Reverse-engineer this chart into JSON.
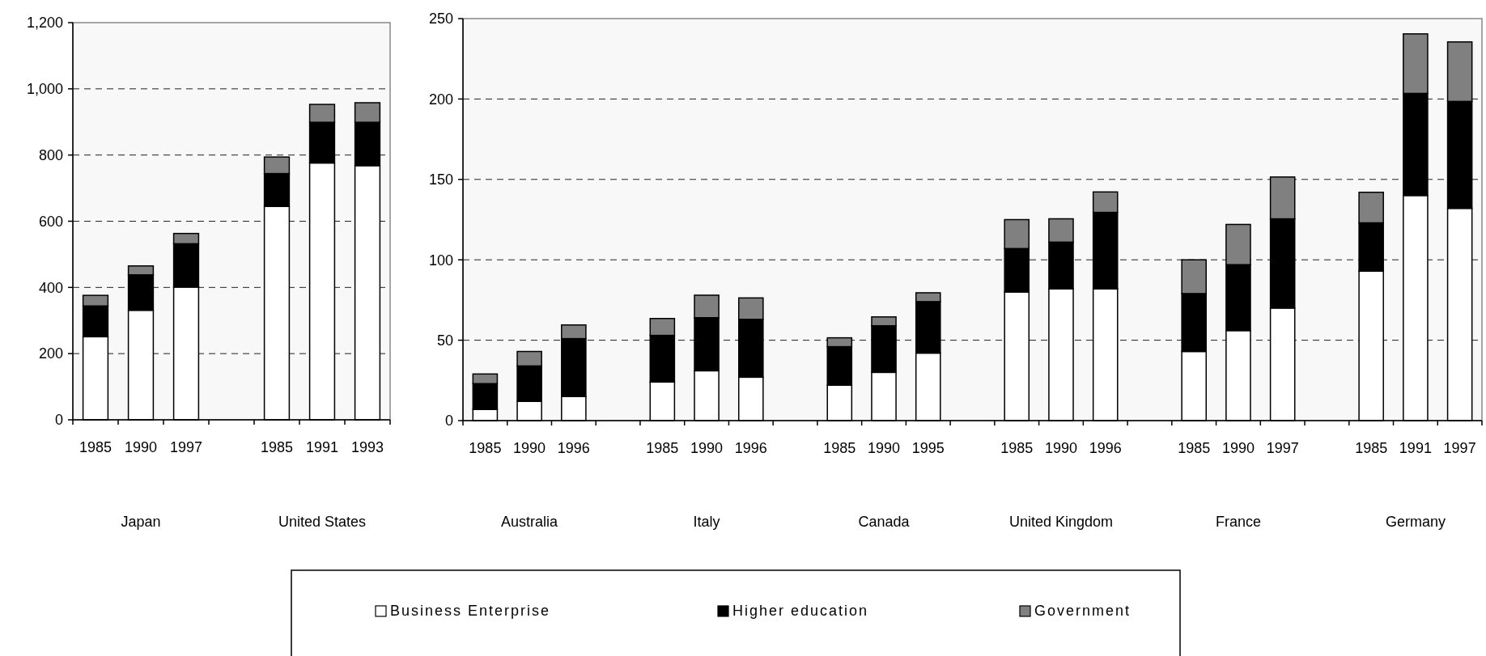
{
  "chart_data": [
    {
      "type": "bar",
      "stacked": true,
      "categories": [
        "1985",
        "1990",
        "1997",
        null,
        "1985",
        "1991",
        "1993"
      ],
      "series": [
        {
          "name": "Business Enterprise",
          "color": "#ffffff",
          "values": [
            251,
            331,
            401,
            null,
            645,
            776,
            768
          ]
        },
        {
          "name": "Higher education",
          "color": "#000000",
          "values": [
            93,
            107,
            131,
            null,
            99,
            123,
            131
          ]
        },
        {
          "name": "Government",
          "color": "#808080",
          "values": [
            32,
            27,
            31,
            null,
            50,
            54,
            59
          ]
        }
      ],
      "ylim": [
        0,
        1200
      ],
      "yticks": [
        {
          "value": 0,
          "label": "0"
        },
        {
          "value": 200,
          "label": "200"
        },
        {
          "value": 400,
          "label": "400"
        },
        {
          "value": 600,
          "label": "600"
        },
        {
          "value": 800,
          "label": "800"
        },
        {
          "value": 1000,
          "label": "1,000"
        },
        {
          "value": 1200,
          "label": "1,200"
        }
      ],
      "grid": "y",
      "legend": "bottom",
      "annotations": [
        "Japan",
        "United States"
      ]
    },
    {
      "type": "bar",
      "stacked": true,
      "categories": [
        "1985",
        "1990",
        "1996",
        null,
        "1985",
        "1990",
        "1996",
        null,
        "1985",
        "1990",
        "1995",
        null,
        "1985",
        "1990",
        "1996",
        null,
        "1985",
        "1990",
        "1997",
        null,
        "1985",
        "1991",
        "1997"
      ],
      "series": [
        {
          "color": "#ffffff",
          "values": [
            7,
            12,
            15,
            null,
            24,
            31,
            27,
            null,
            22,
            30,
            42,
            null,
            80,
            82,
            82,
            null,
            43,
            56,
            70,
            null,
            93,
            140,
            132
          ]
        },
        {
          "color": "#000000",
          "values": [
            16,
            22,
            36,
            null,
            29,
            33,
            36,
            null,
            24,
            29,
            32,
            null,
            27,
            29,
            47.5,
            null,
            36,
            41,
            55.5,
            null,
            30,
            63.5,
            66.5
          ]
        },
        {
          "color": "#808080",
          "values": [
            6,
            9,
            8.5,
            null,
            10.5,
            14,
            13.3,
            null,
            5.5,
            5.5,
            5.5,
            null,
            18,
            14.5,
            12.7,
            null,
            21,
            25,
            26,
            null,
            19,
            37,
            37
          ]
        }
      ],
      "ylim": [
        0,
        250
      ],
      "yticks": [
        0,
        50,
        100,
        150,
        200,
        250
      ],
      "grid": "y",
      "annotations": [
        "Australia",
        "Italy",
        "Canada",
        "United Kingdom",
        "France",
        "Germany"
      ]
    }
  ]
}
